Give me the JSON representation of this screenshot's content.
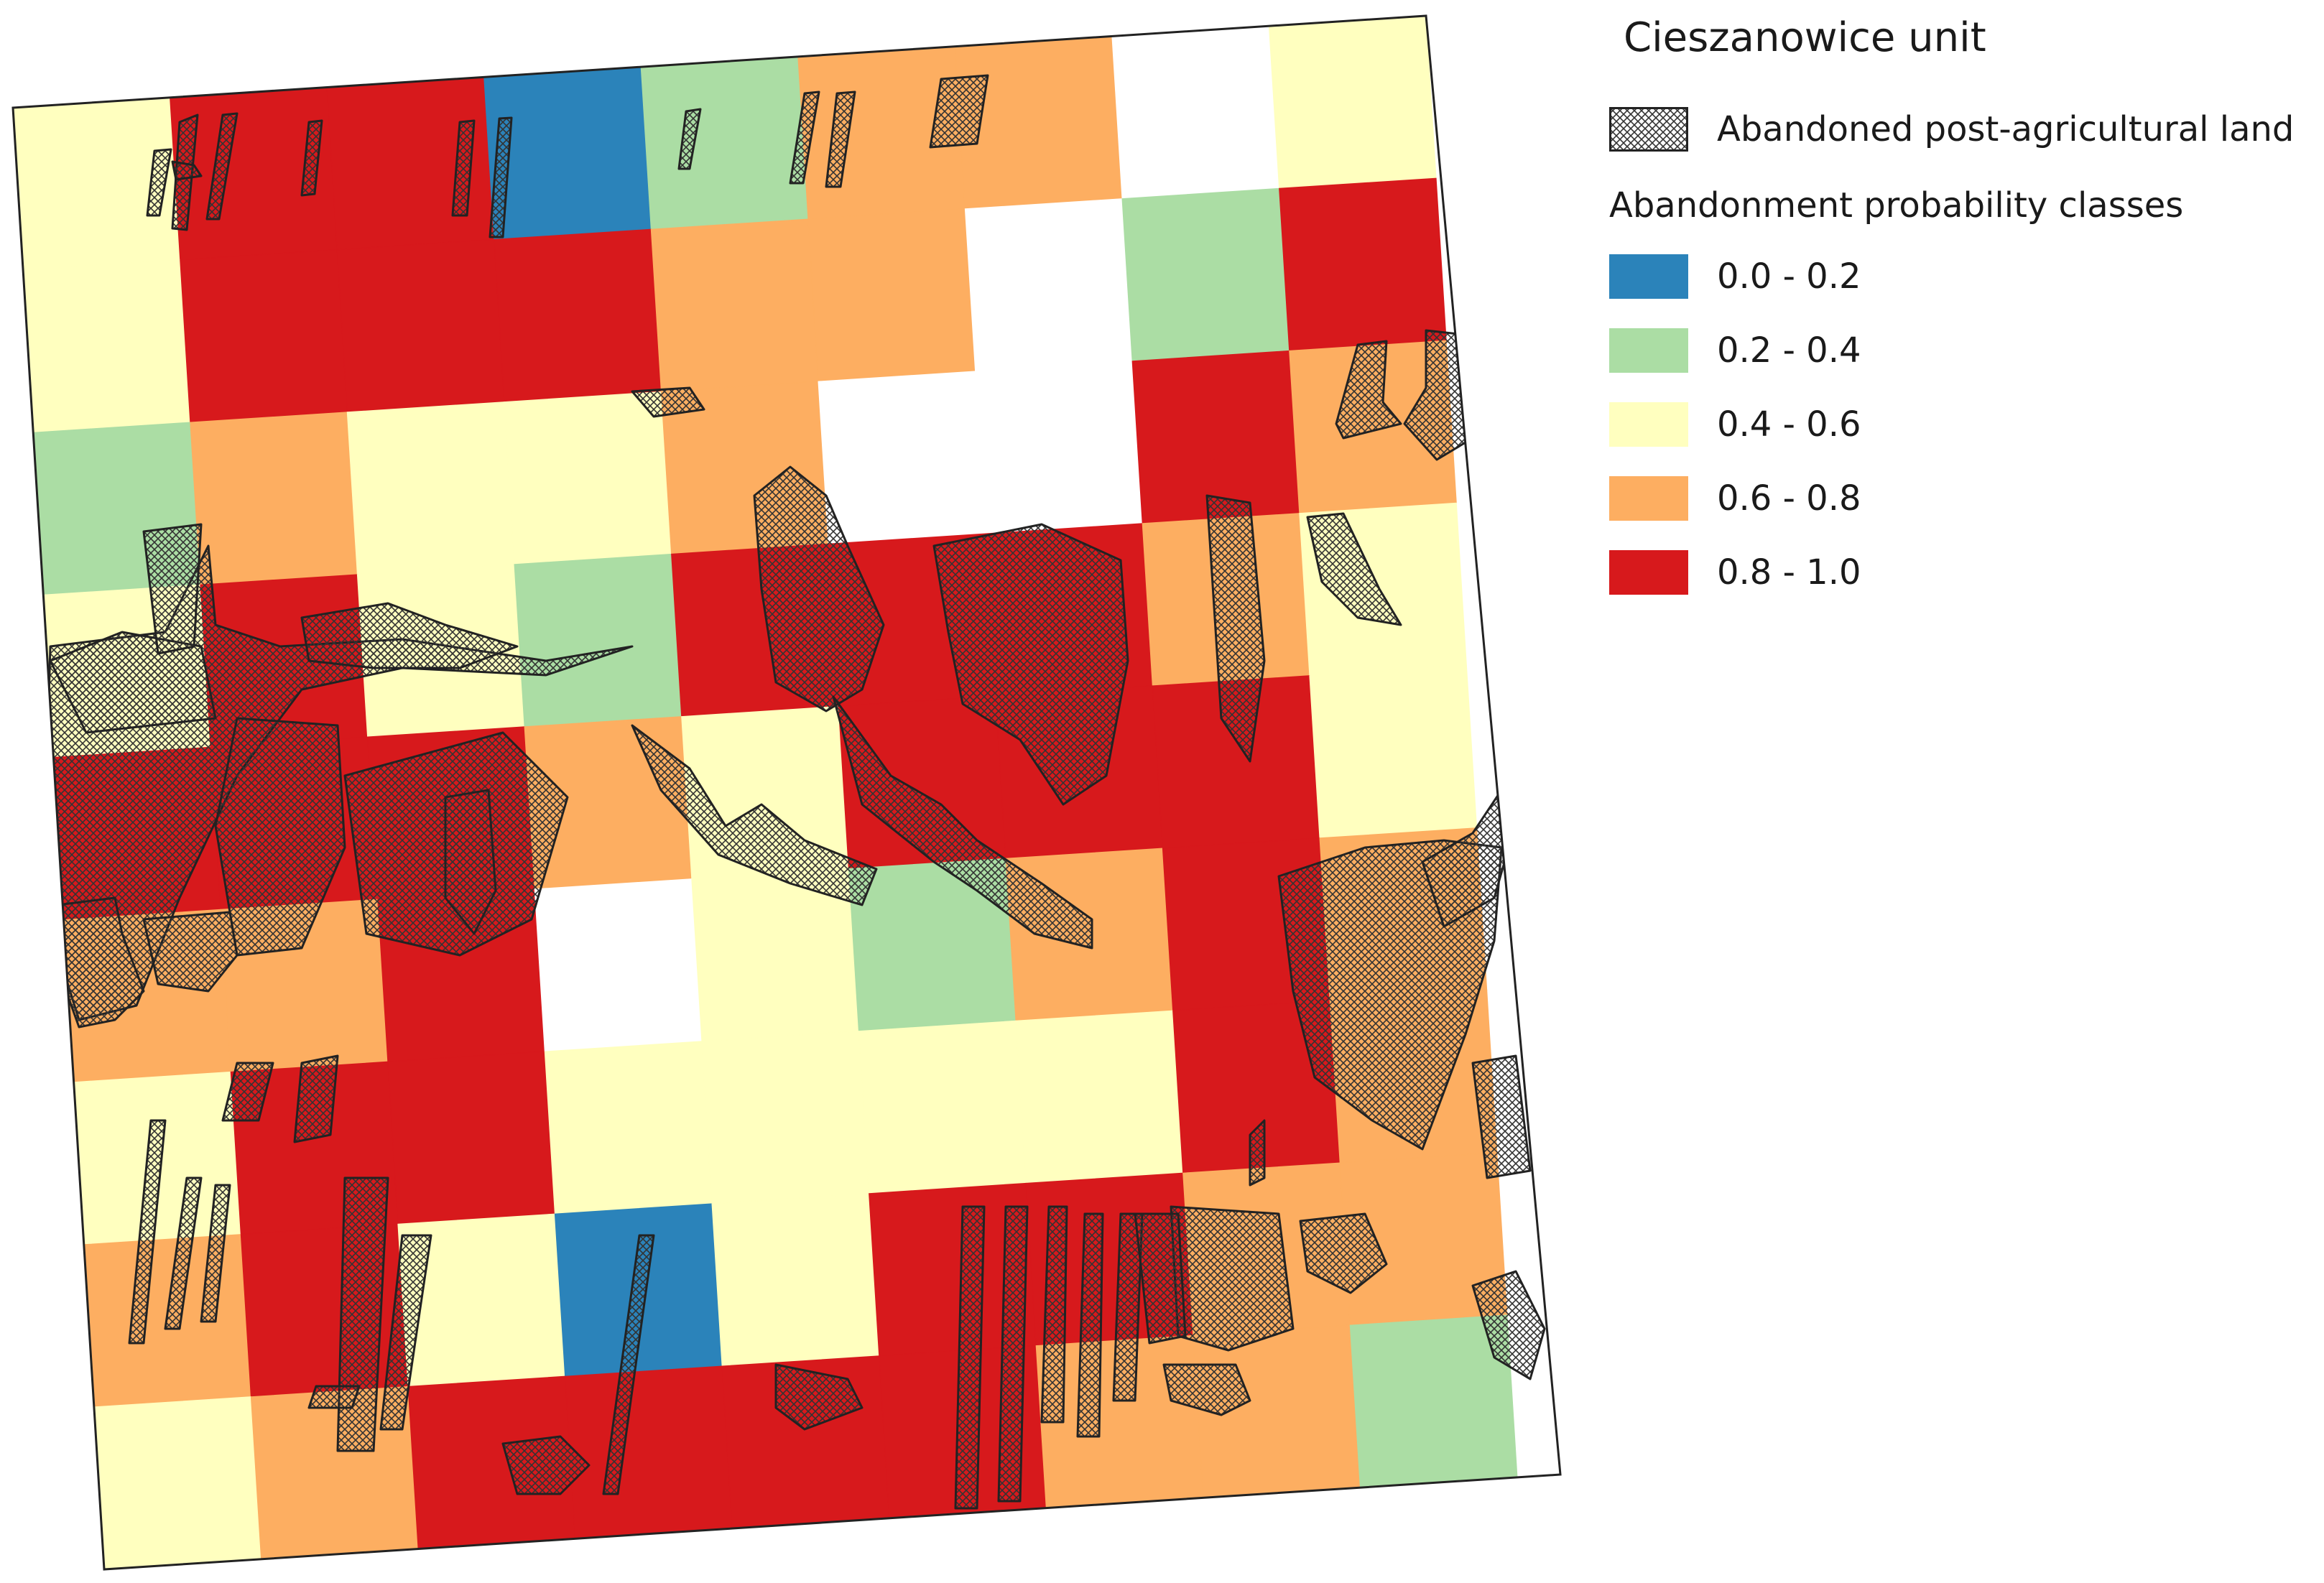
{
  "legend": {
    "title": "Cieszanowice unit",
    "hatch_label": "Abandoned post-agricultural land",
    "classes_title": "Abandonment probability classes",
    "classes": [
      {
        "label": "0.0 - 0.2",
        "color": "#2b83ba"
      },
      {
        "label": "0.2 - 0.4",
        "color": "#abdda4"
      },
      {
        "label": "0.4 - 0.6",
        "color": "#ffffbf"
      },
      {
        "label": "0.6 - 0.8",
        "color": "#fdae61"
      },
      {
        "label": "0.8 - 1.0",
        "color": "#d7191c"
      }
    ]
  },
  "map": {
    "grid": [
      [
        2,
        4,
        4,
        0,
        1,
        3,
        3,
        -1,
        2
      ],
      [
        2,
        4,
        4,
        4,
        3,
        3,
        -1,
        1,
        4
      ],
      [
        1,
        3,
        2,
        2,
        3,
        -1,
        -1,
        4,
        3
      ],
      [
        2,
        4,
        2,
        1,
        4,
        4,
        4,
        3,
        2
      ],
      [
        4,
        4,
        4,
        3,
        2,
        4,
        4,
        4,
        2
      ],
      [
        3,
        3,
        4,
        -1,
        2,
        1,
        3,
        4,
        3
      ],
      [
        2,
        4,
        4,
        2,
        2,
        2,
        2,
        4,
        3
      ],
      [
        3,
        4,
        2,
        0,
        2,
        4,
        4,
        3,
        3
      ],
      [
        2,
        3,
        4,
        4,
        4,
        4,
        3,
        3,
        1
      ]
    ],
    "hatch_color": "#333333"
  }
}
